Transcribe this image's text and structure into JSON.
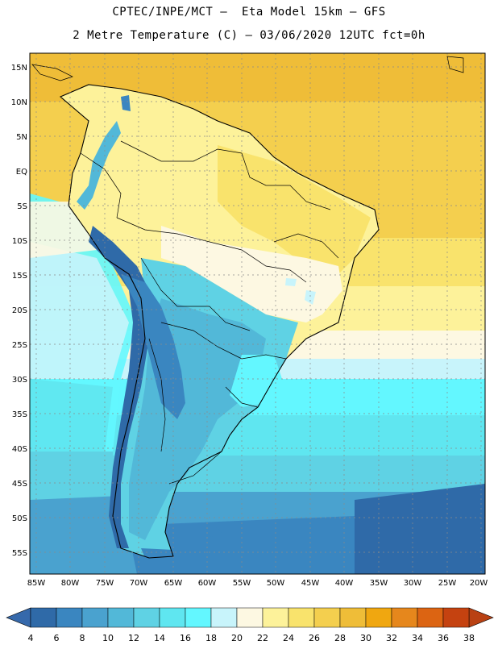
{
  "header": {
    "line1": "CPTEC/INPE/MCT –  Eta Model 15km – GFS",
    "line2": "2 Metre Temperature (C) – 03/06/2020 12UTC fct=0h"
  },
  "map": {
    "lat_labels": [
      "15N",
      "10N",
      "5N",
      "EQ",
      "5S",
      "10S",
      "15S",
      "20S",
      "25S",
      "30S",
      "35S",
      "40S",
      "45S",
      "50S",
      "55S"
    ],
    "lon_labels": [
      "85W",
      "80W",
      "75W",
      "70W",
      "65W",
      "60W",
      "55W",
      "50W",
      "45W",
      "40W",
      "35W",
      "30W",
      "25W",
      "20W"
    ]
  },
  "colorbar": {
    "labels": [
      "4",
      "6",
      "8",
      "10",
      "12",
      "14",
      "16",
      "18",
      "20",
      "22",
      "24",
      "26",
      "28",
      "30",
      "32",
      "34",
      "36",
      "38"
    ],
    "colors": [
      "#2f6aa8",
      "#3a86c0",
      "#4aa2cf",
      "#52b8d8",
      "#5fd2e4",
      "#5fe6f0",
      "#63f7ff",
      "#c8f4fb",
      "#fdf8e2",
      "#fdf29a",
      "#f9e36c",
      "#f4cf4e",
      "#efbd38",
      "#f0a710",
      "#e6871c",
      "#dc6412",
      "#c54210"
    ],
    "low_color": "#3669ab",
    "high_color": "#b94113"
  }
}
